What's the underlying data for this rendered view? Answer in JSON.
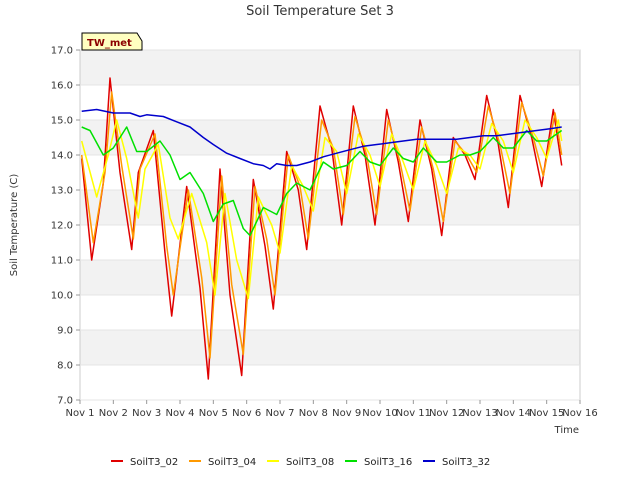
{
  "chart_data": {
    "type": "line",
    "title": "Soil Temperature Set 3",
    "xlabel": "Time",
    "ylabel": "Soil Temperature (C)",
    "badge": "TW_met",
    "xlim": [
      1,
      16
    ],
    "ylim": [
      7.0,
      17.0
    ],
    "x_ticks": [
      "Nov 1",
      "Nov 2",
      "Nov 3",
      "Nov 4",
      "Nov 5",
      "Nov 6",
      "Nov 7",
      "Nov 8",
      "Nov 9",
      "Nov 10",
      "Nov 11",
      "Nov 12",
      "Nov 13",
      "Nov 14",
      "Nov 15",
      "Nov 16"
    ],
    "y_ticks": [
      "7.0",
      "8.0",
      "9.0",
      "10.0",
      "11.0",
      "12.0",
      "13.0",
      "14.0",
      "15.0",
      "16.0",
      "17.0"
    ],
    "grid": true,
    "legend_position": "bottom",
    "series": [
      {
        "name": "SoilT3_02",
        "color": "#e00000",
        "x": [
          1.05,
          1.35,
          1.7,
          1.9,
          2.2,
          2.55,
          2.75,
          3.2,
          3.55,
          3.75,
          4.2,
          4.6,
          4.85,
          5.2,
          5.5,
          5.85,
          6.2,
          6.55,
          6.8,
          7.2,
          7.55,
          7.8,
          8.2,
          8.55,
          8.85,
          9.2,
          9.55,
          9.85,
          10.2,
          10.55,
          10.85,
          11.2,
          11.55,
          11.85,
          12.2,
          12.55,
          12.85,
          13.2,
          13.55,
          13.85,
          14.2,
          14.55,
          14.85,
          15.2,
          15.45
        ],
        "y": [
          13.9,
          11.0,
          13.2,
          16.2,
          13.5,
          11.3,
          13.5,
          14.7,
          11.2,
          9.4,
          13.1,
          10.2,
          7.6,
          13.6,
          10.0,
          7.7,
          13.3,
          11.4,
          9.6,
          14.1,
          13.0,
          11.3,
          15.4,
          14.2,
          12.0,
          15.4,
          14.0,
          12.0,
          15.3,
          13.8,
          12.1,
          15.0,
          13.6,
          11.7,
          14.5,
          14.0,
          13.3,
          15.7,
          14.3,
          12.5,
          15.7,
          14.5,
          13.1,
          15.3,
          13.7
        ]
      },
      {
        "name": "SoilT3_04",
        "color": "#ff9900",
        "x": [
          1.05,
          1.4,
          1.75,
          1.95,
          2.25,
          2.6,
          2.8,
          3.25,
          3.6,
          3.8,
          4.25,
          4.65,
          4.9,
          5.25,
          5.55,
          5.9,
          6.25,
          6.6,
          6.85,
          7.25,
          7.6,
          7.85,
          8.25,
          8.6,
          8.9,
          9.25,
          9.6,
          9.9,
          10.25,
          10.6,
          10.9,
          11.25,
          11.6,
          11.9,
          12.25,
          12.6,
          12.9,
          13.25,
          13.6,
          13.9,
          14.25,
          14.6,
          14.9,
          15.25,
          15.45
        ],
        "y": [
          14.0,
          11.5,
          13.5,
          15.8,
          13.7,
          11.6,
          13.6,
          14.6,
          11.4,
          10.0,
          13.0,
          10.5,
          8.2,
          13.4,
          10.3,
          8.3,
          13.1,
          11.6,
          10.0,
          14.0,
          13.1,
          11.6,
          15.0,
          14.2,
          12.3,
          15.1,
          14.0,
          12.3,
          15.0,
          13.8,
          12.4,
          14.8,
          13.6,
          12.1,
          14.4,
          14.0,
          13.5,
          15.4,
          14.3,
          12.9,
          15.5,
          14.5,
          13.4,
          15.2,
          14.0
        ]
      },
      {
        "name": "SoilT3_08",
        "color": "#ffff00",
        "x": [
          1.05,
          1.5,
          1.85,
          2.1,
          2.4,
          2.75,
          2.95,
          3.35,
          3.7,
          3.95,
          4.35,
          4.8,
          5.05,
          5.35,
          5.7,
          6.05,
          6.35,
          6.75,
          7.0,
          7.35,
          7.7,
          8.0,
          8.35,
          8.7,
          9.0,
          9.35,
          9.7,
          10.0,
          10.35,
          10.7,
          11.0,
          11.35,
          11.7,
          12.0,
          12.35,
          12.7,
          13.0,
          13.35,
          13.7,
          14.0,
          14.35,
          14.7,
          15.0,
          15.35,
          15.45
        ],
        "y": [
          14.4,
          12.8,
          14.0,
          15.0,
          13.9,
          12.2,
          13.6,
          14.3,
          12.2,
          11.6,
          12.9,
          11.5,
          10.0,
          12.9,
          11.0,
          9.9,
          12.8,
          12.0,
          11.2,
          13.7,
          13.1,
          12.4,
          14.5,
          14.1,
          12.9,
          14.6,
          14.0,
          13.1,
          14.6,
          13.8,
          13.0,
          14.4,
          13.7,
          12.9,
          14.2,
          14.0,
          13.6,
          14.9,
          14.4,
          13.5,
          15.0,
          14.5,
          13.9,
          15.0,
          14.4
        ]
      },
      {
        "name": "SoilT3_16",
        "color": "#00e000",
        "x": [
          1.05,
          1.3,
          1.7,
          2.0,
          2.4,
          2.7,
          3.0,
          3.4,
          3.7,
          4.0,
          4.3,
          4.7,
          5.0,
          5.3,
          5.6,
          5.9,
          6.1,
          6.5,
          6.9,
          7.2,
          7.5,
          7.9,
          8.3,
          8.6,
          9.0,
          9.4,
          9.7,
          10.0,
          10.4,
          10.7,
          11.0,
          11.3,
          11.7,
          12.0,
          12.4,
          12.7,
          13.0,
          13.4,
          13.7,
          14.0,
          14.4,
          14.7,
          15.0,
          15.45
        ],
        "y": [
          14.8,
          14.7,
          14.0,
          14.2,
          14.8,
          14.1,
          14.1,
          14.4,
          14.0,
          13.3,
          13.5,
          12.9,
          12.1,
          12.6,
          12.7,
          11.9,
          11.7,
          12.5,
          12.3,
          12.9,
          13.2,
          13.0,
          13.8,
          13.6,
          13.7,
          14.1,
          13.8,
          13.7,
          14.2,
          13.9,
          13.8,
          14.2,
          13.8,
          13.8,
          14.0,
          14.0,
          14.1,
          14.5,
          14.2,
          14.2,
          14.7,
          14.4,
          14.4,
          14.7
        ]
      },
      {
        "name": "SoilT3_32",
        "color": "#0000cc",
        "x": [
          1.05,
          1.5,
          2.0,
          2.5,
          2.8,
          3.0,
          3.5,
          3.9,
          4.3,
          4.7,
          5.0,
          5.4,
          5.8,
          6.2,
          6.5,
          6.7,
          6.9,
          7.2,
          7.5,
          7.9,
          8.3,
          8.7,
          9.1,
          9.5,
          9.9,
          10.3,
          10.7,
          11.1,
          11.5,
          11.9,
          12.3,
          12.7,
          13.1,
          13.5,
          13.9,
          14.3,
          14.7,
          15.1,
          15.45
        ],
        "y": [
          15.25,
          15.3,
          15.2,
          15.2,
          15.1,
          15.15,
          15.1,
          14.95,
          14.8,
          14.5,
          14.3,
          14.05,
          13.9,
          13.75,
          13.7,
          13.6,
          13.75,
          13.7,
          13.7,
          13.8,
          13.95,
          14.05,
          14.15,
          14.25,
          14.3,
          14.35,
          14.4,
          14.45,
          14.45,
          14.45,
          14.45,
          14.5,
          14.55,
          14.55,
          14.6,
          14.65,
          14.7,
          14.75,
          14.8
        ]
      }
    ]
  }
}
